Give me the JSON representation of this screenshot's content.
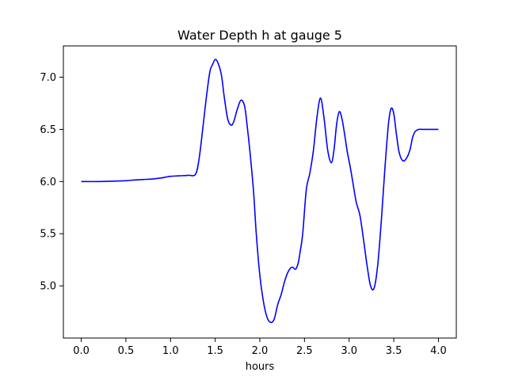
{
  "chart_data": {
    "type": "line",
    "title": "Water Depth h at gauge 5",
    "xlabel": "hours",
    "ylabel": "",
    "xlim": [
      -0.2,
      4.2
    ],
    "ylim": [
      4.5,
      7.3
    ],
    "xticks": [
      0.0,
      0.5,
      1.0,
      1.5,
      2.0,
      2.5,
      3.0,
      3.5,
      4.0
    ],
    "xtick_labels": [
      "0.0",
      "0.5",
      "1.0",
      "1.5",
      "2.0",
      "2.5",
      "3.0",
      "3.5",
      "4.0"
    ],
    "yticks": [
      5.0,
      5.5,
      6.0,
      6.5,
      7.0
    ],
    "ytick_labels": [
      "5.0",
      "5.5",
      "6.0",
      "6.5",
      "7.0"
    ],
    "grid": false,
    "series": [
      {
        "color": "#0000ff",
        "x": [
          0.0,
          0.2,
          0.4,
          0.5,
          0.6,
          0.7,
          0.8,
          0.9,
          1.0,
          1.1,
          1.2,
          1.28,
          1.32,
          1.36,
          1.4,
          1.44,
          1.47,
          1.5,
          1.53,
          1.57,
          1.6,
          1.64,
          1.68,
          1.71,
          1.75,
          1.79,
          1.83,
          1.86,
          1.89,
          1.93,
          1.96,
          2.0,
          2.04,
          2.08,
          2.12,
          2.16,
          2.2,
          2.24,
          2.28,
          2.32,
          2.36,
          2.4,
          2.43,
          2.45,
          2.48,
          2.52,
          2.56,
          2.6,
          2.64,
          2.68,
          2.72,
          2.76,
          2.8,
          2.83,
          2.86,
          2.89,
          2.92,
          2.95,
          2.98,
          3.01,
          3.04,
          3.08,
          3.12,
          3.16,
          3.2,
          3.24,
          3.28,
          3.32,
          3.36,
          3.4,
          3.44,
          3.47,
          3.5,
          3.53,
          3.56,
          3.6,
          3.64,
          3.68,
          3.71,
          3.74,
          3.78,
          3.82,
          3.86,
          3.9,
          3.94,
          3.98,
          4.0
        ],
        "y": [
          6.0,
          6.0,
          6.005,
          6.008,
          6.015,
          6.02,
          6.025,
          6.035,
          6.05,
          6.055,
          6.06,
          6.07,
          6.22,
          6.5,
          6.8,
          7.05,
          7.12,
          7.17,
          7.14,
          7.02,
          6.82,
          6.6,
          6.54,
          6.58,
          6.7,
          6.78,
          6.72,
          6.52,
          6.28,
          5.9,
          5.5,
          5.1,
          4.85,
          4.7,
          4.65,
          4.68,
          4.82,
          4.92,
          5.05,
          5.14,
          5.18,
          5.16,
          5.22,
          5.32,
          5.5,
          5.92,
          6.08,
          6.3,
          6.62,
          6.8,
          6.6,
          6.3,
          6.18,
          6.3,
          6.55,
          6.67,
          6.6,
          6.45,
          6.28,
          6.15,
          6.0,
          5.8,
          5.68,
          5.45,
          5.2,
          5.0,
          4.98,
          5.2,
          5.62,
          6.12,
          6.55,
          6.7,
          6.65,
          6.45,
          6.28,
          6.2,
          6.22,
          6.3,
          6.42,
          6.48,
          6.5,
          6.5,
          6.5,
          6.5,
          6.5,
          6.5,
          6.5
        ]
      }
    ]
  }
}
